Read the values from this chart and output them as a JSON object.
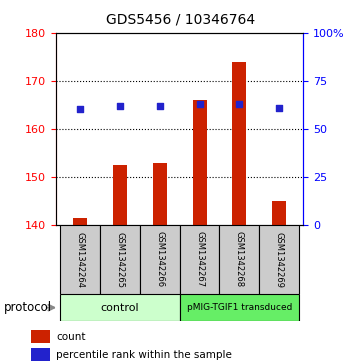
{
  "title": "GDS5456 / 10346764",
  "samples": [
    "GSM1342264",
    "GSM1342265",
    "GSM1342266",
    "GSM1342267",
    "GSM1342268",
    "GSM1342269"
  ],
  "counts": [
    141.5,
    152.5,
    153.0,
    166.0,
    174.0,
    145.0
  ],
  "percentile_ranks": [
    60.5,
    62.0,
    62.0,
    63.0,
    63.0,
    61.0
  ],
  "ylim_left": [
    140,
    180
  ],
  "ylim_right": [
    0,
    100
  ],
  "yticks_left": [
    140,
    150,
    160,
    170,
    180
  ],
  "yticks_right": [
    0,
    25,
    50,
    75,
    100
  ],
  "bar_color": "#cc2200",
  "dot_color": "#2222cc",
  "bar_bottom": 140,
  "grid_lines": [
    150,
    160,
    170
  ],
  "control_label": "control",
  "transduced_label": "pMIG-TGIF1 transduced",
  "control_color": "#ccffcc",
  "transduced_color": "#66ee66",
  "sample_box_color": "#cccccc",
  "protocol_label": "protocol",
  "legend_count": "count",
  "legend_pct": "percentile rank within the sample",
  "title_fontsize": 10,
  "axis_fontsize": 8,
  "label_fontsize": 8
}
